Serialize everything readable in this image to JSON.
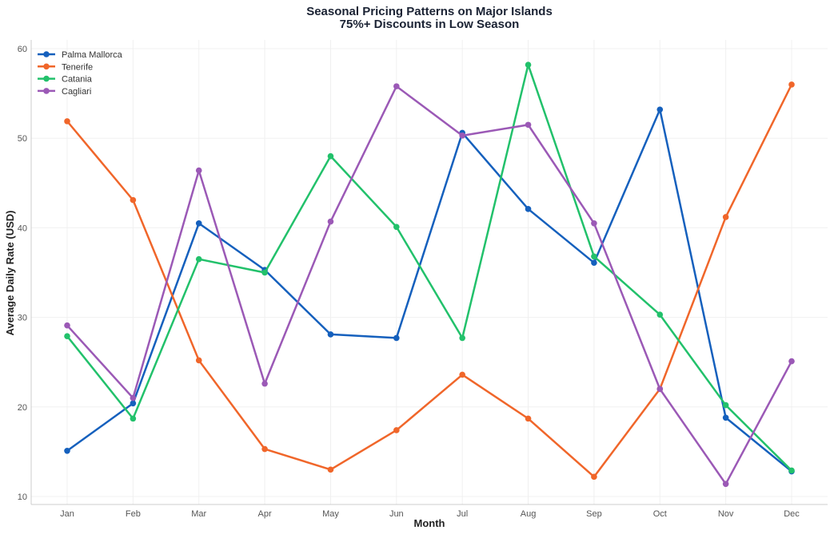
{
  "chart_data": {
    "type": "line",
    "title": "Seasonal Pricing Patterns on Major Islands",
    "subtitle": "75%+ Discounts in Low Season",
    "xlabel": "Month",
    "ylabel": "Average Daily Rate (USD)",
    "ylim": [
      9,
      61
    ],
    "yticks": [
      10,
      20,
      30,
      40,
      50,
      60
    ],
    "grid": true,
    "legend_position": "upper left",
    "categories": [
      "Jan",
      "Feb",
      "Mar",
      "Apr",
      "May",
      "Jun",
      "Jul",
      "Aug",
      "Sep",
      "Oct",
      "Nov",
      "Dec"
    ],
    "series": [
      {
        "name": "Palma Mallorca",
        "color": "#1560bd",
        "values": [
          15.1,
          20.4,
          40.5,
          35.3,
          28.1,
          27.7,
          50.6,
          42.1,
          36.1,
          53.2,
          18.8,
          12.8
        ]
      },
      {
        "name": "Tenerife",
        "color": "#f0662a",
        "values": [
          51.9,
          43.1,
          25.2,
          15.3,
          13.0,
          17.4,
          23.6,
          18.7,
          12.2,
          22.0,
          41.2,
          56.0
        ]
      },
      {
        "name": "Catania",
        "color": "#22c16b",
        "values": [
          27.9,
          18.7,
          36.5,
          35.0,
          48.0,
          40.1,
          27.7,
          58.2,
          36.8,
          30.3,
          20.2,
          12.9
        ]
      },
      {
        "name": "Cagliari",
        "color": "#9b59b6",
        "values": [
          29.1,
          21.0,
          46.4,
          22.6,
          40.7,
          55.8,
          50.3,
          51.5,
          40.5,
          22.0,
          11.4,
          25.1
        ]
      }
    ]
  }
}
